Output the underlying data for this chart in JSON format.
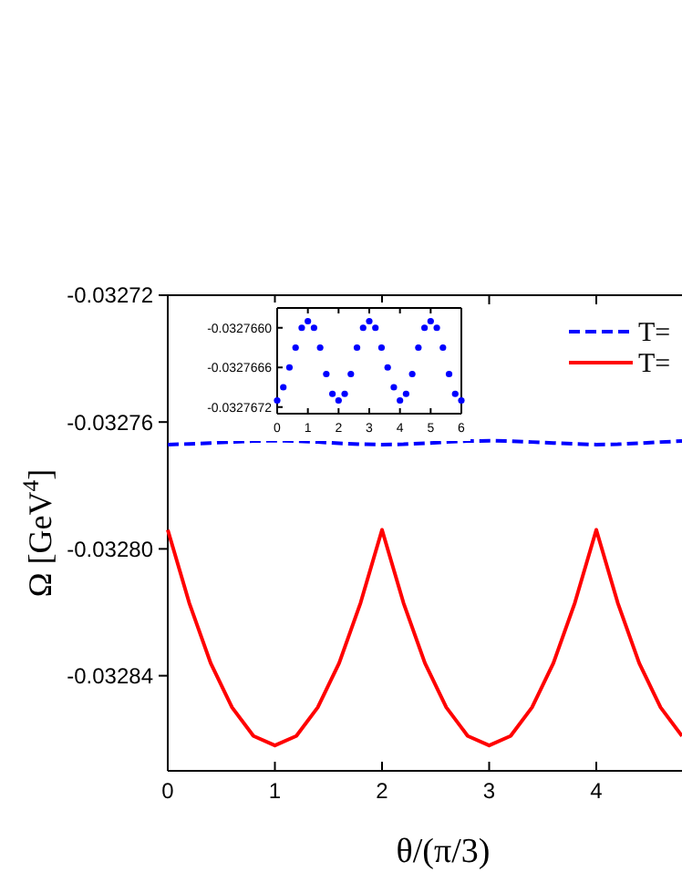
{
  "chart_data": [
    {
      "type": "line",
      "xlabel": "θ/(π/3)",
      "ylabel": "Ω [GeV$^{4}$]",
      "xlim": [
        0,
        4.8
      ],
      "xticks": [
        0,
        1,
        2,
        3,
        4
      ],
      "ylim": [
        -0.03287,
        -0.03272
      ],
      "yticks": [
        -0.03284,
        {
          "value": -0.0328,
          "label": "-0.03280"
        },
        -0.03276,
        -0.03272
      ],
      "legend": "top right",
      "series": [
        {
          "name": "T=",
          "color": "#0000ff",
          "line_style": "dashed",
          "x": [
            0,
            0.2,
            0.4,
            0.6,
            0.8,
            1,
            1.2,
            1.4,
            1.6,
            1.8,
            2,
            2.2,
            2.4,
            2.6,
            2.8,
            3,
            3.2,
            3.4,
            3.6,
            3.8,
            4,
            4.2,
            4.4,
            4.6,
            4.8
          ],
          "values": [
            -0.0327671,
            -0.0327669,
            -0.0327666,
            -0.0327663,
            -0.032766,
            -0.0327659,
            -0.032766,
            -0.0327663,
            -0.0327667,
            -0.032767,
            -0.0327671,
            -0.032767,
            -0.0327667,
            -0.0327663,
            -0.032766,
            -0.0327659,
            -0.032766,
            -0.0327663,
            -0.0327666,
            -0.0327669,
            -0.0327671,
            -0.032767,
            -0.0327667,
            -0.0327663,
            -0.032766
          ]
        },
        {
          "name": "T=",
          "color": "#ff0000",
          "line_style": "solid",
          "x": [
            0,
            0.2,
            0.4,
            0.6,
            0.8,
            1,
            1.2,
            1.4,
            1.6,
            1.8,
            2,
            2.2,
            2.4,
            2.6,
            2.8,
            3,
            3.2,
            3.4,
            3.6,
            3.8,
            4,
            4.2,
            4.4,
            4.6,
            4.8
          ],
          "values": [
            -0.032794,
            -0.032817,
            -0.032836,
            -0.03285,
            -0.032859,
            -0.032862,
            -0.032859,
            -0.03285,
            -0.032836,
            -0.032817,
            -0.032794,
            -0.032817,
            -0.032836,
            -0.03285,
            -0.032859,
            -0.032862,
            -0.032859,
            -0.03285,
            -0.032836,
            -0.032817,
            -0.032794,
            -0.032817,
            -0.032836,
            -0.03285,
            -0.032859
          ]
        }
      ]
    },
    {
      "type": "scatter",
      "marker": "circle",
      "xlim": [
        0,
        6
      ],
      "xticks": [
        0,
        1,
        2,
        3,
        4,
        5,
        6
      ],
      "ylim": [
        -0.0327673,
        -0.0327657
      ],
      "yticks": [
        -0.0327672,
        -0.0327666,
        {
          "value": -0.032766,
          "label": "-0.0327660"
        }
      ],
      "series": [
        {
          "color": "#0000ff",
          "x": [
            0,
            0.2,
            0.4,
            0.6,
            0.8,
            1,
            1.2,
            1.4,
            1.6,
            1.8,
            2,
            2.2,
            2.4,
            2.6,
            2.8,
            3,
            3.2,
            3.4,
            3.6,
            3.8,
            4,
            4.2,
            4.4,
            4.6,
            4.8,
            5,
            5.2,
            5.4,
            5.6,
            5.8,
            6
          ],
          "values": [
            -0.0327671,
            -0.0327669,
            -0.0327666,
            -0.0327663,
            -0.032766,
            -0.0327659,
            -0.032766,
            -0.0327663,
            -0.0327667,
            -0.032767,
            -0.0327671,
            -0.032767,
            -0.0327667,
            -0.0327663,
            -0.032766,
            -0.0327659,
            -0.032766,
            -0.0327663,
            -0.0327666,
            -0.0327669,
            -0.0327671,
            -0.032767,
            -0.0327667,
            -0.0327663,
            -0.032766,
            -0.0327659,
            -0.032766,
            -0.0327663,
            -0.0327667,
            -0.032767,
            -0.0327671
          ]
        }
      ]
    }
  ]
}
